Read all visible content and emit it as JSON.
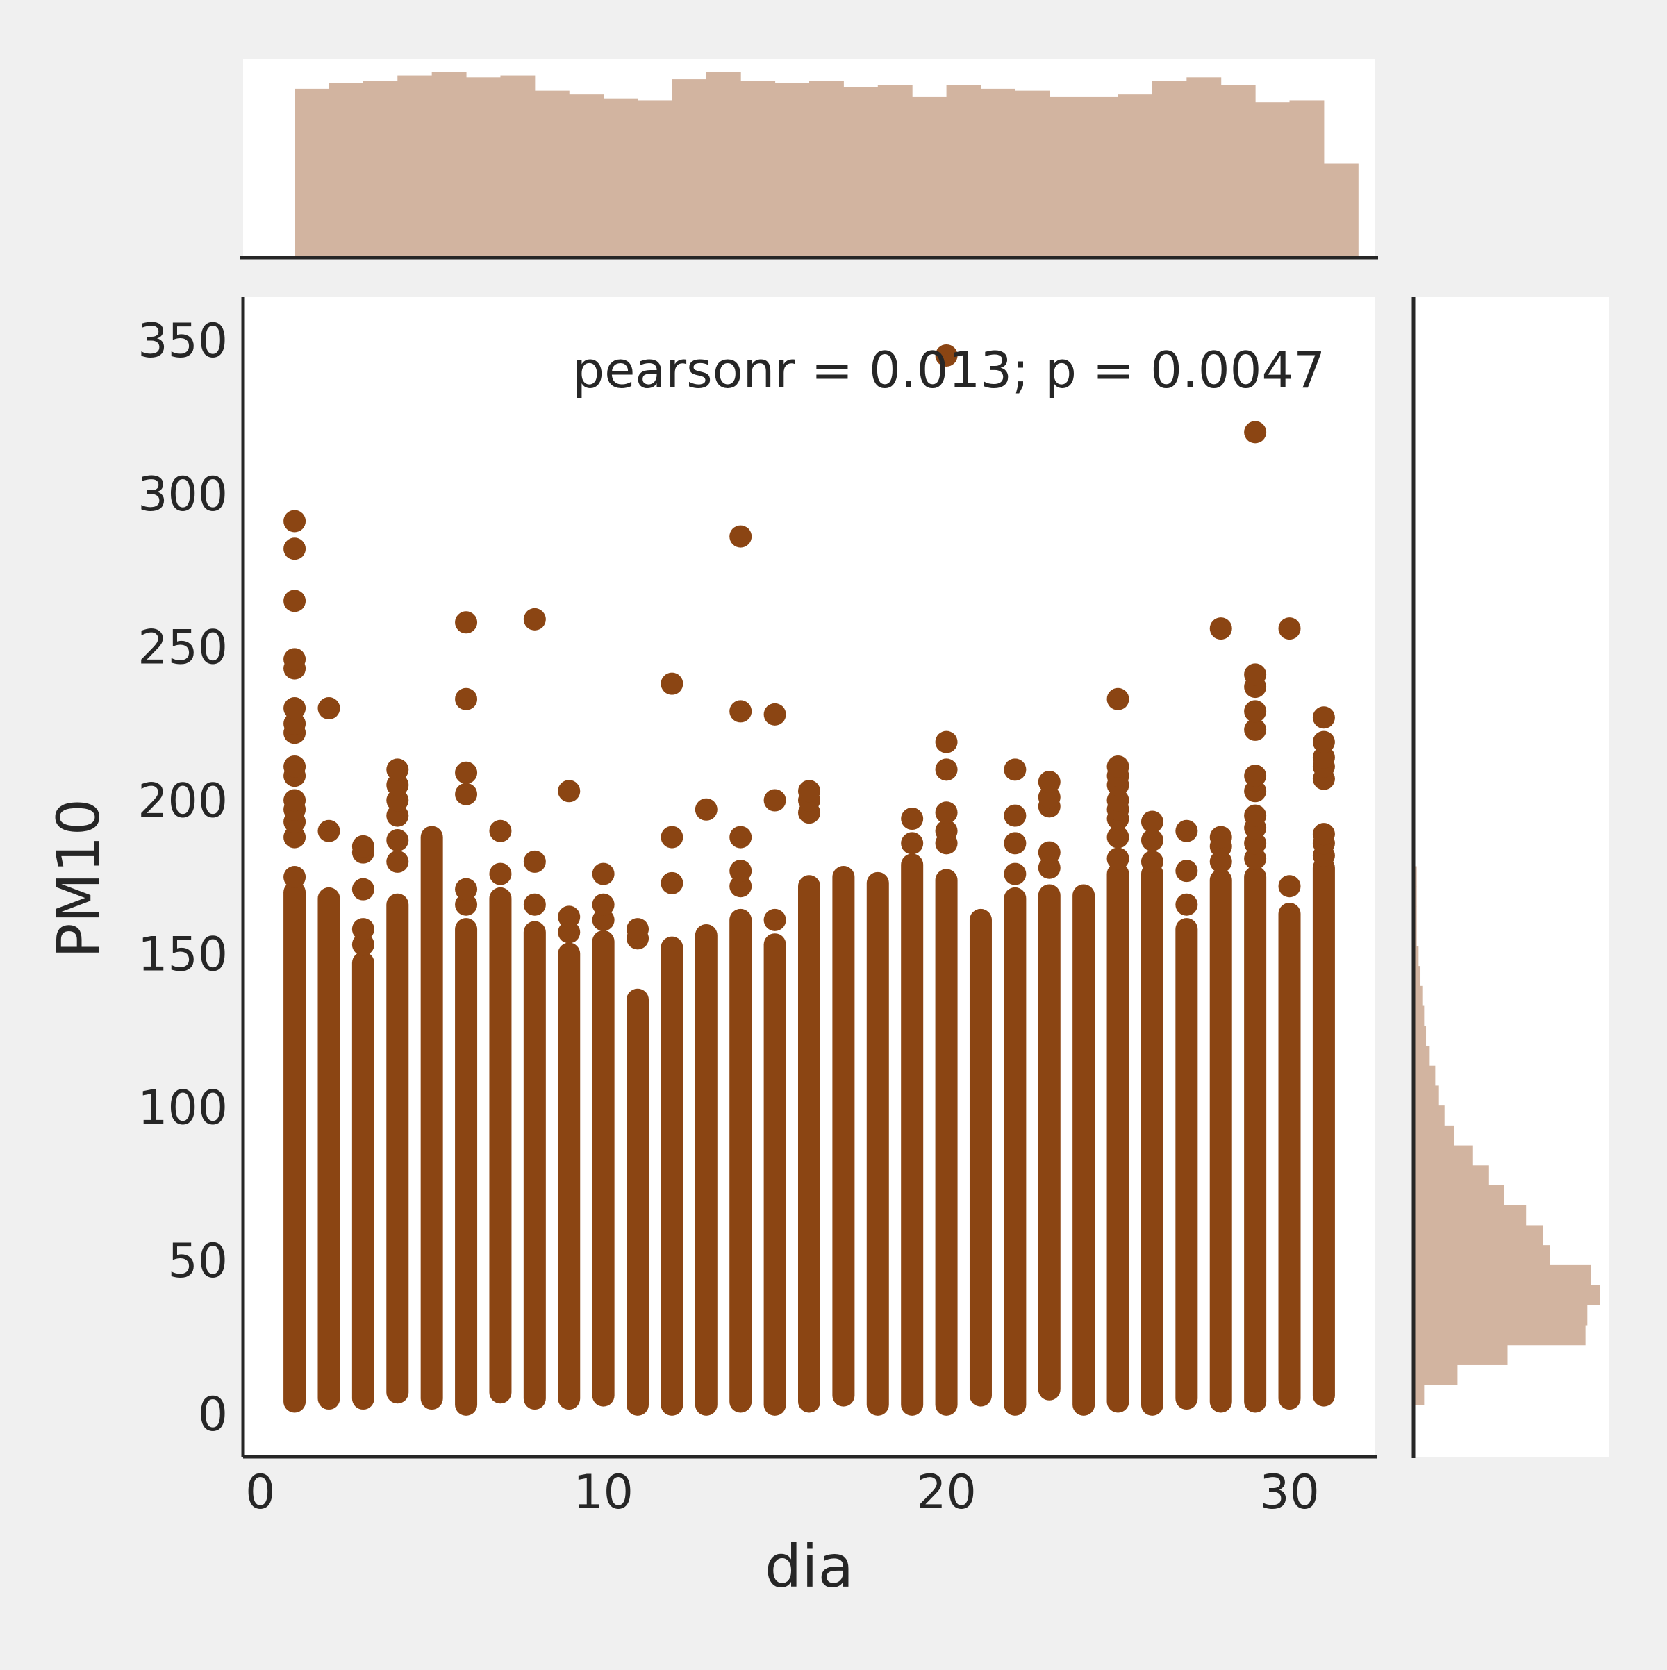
{
  "chart_data": {
    "type": "scatter",
    "title": "",
    "xlabel": "dia",
    "ylabel": "PM10",
    "xlim": [
      -0.5,
      32.5
    ],
    "ylim": [
      -14,
      364
    ],
    "xticks": [
      0,
      10,
      20,
      30
    ],
    "yticks": [
      0,
      50,
      100,
      150,
      200,
      250,
      300,
      350
    ],
    "annotation": "pearsonr = 0.013; p = 0.0047",
    "grid": false,
    "marker_color": "#8b4513",
    "hist_color": "#d2b4a0",
    "background": "#f0f0f0",
    "days": [
      {
        "x": 1,
        "min": 4,
        "max": 170,
        "outliers": [
          175,
          188,
          193,
          197,
          200,
          208,
          211,
          222,
          225,
          230,
          243,
          246,
          265,
          282,
          291
        ]
      },
      {
        "x": 2,
        "min": 5,
        "max": 168,
        "outliers": [
          190,
          230
        ]
      },
      {
        "x": 3,
        "min": 5,
        "max": 147,
        "outliers": [
          153,
          158,
          171,
          183,
          185
        ]
      },
      {
        "x": 4,
        "min": 7,
        "max": 166,
        "outliers": [
          180,
          187,
          195,
          200,
          205,
          210
        ]
      },
      {
        "x": 5,
        "min": 5,
        "max": 188,
        "outliers": []
      },
      {
        "x": 6,
        "min": 3,
        "max": 158,
        "outliers": [
          166,
          171,
          202,
          209,
          233,
          258
        ]
      },
      {
        "x": 7,
        "min": 7,
        "max": 168,
        "outliers": [
          176,
          190
        ]
      },
      {
        "x": 8,
        "min": 5,
        "max": 157,
        "outliers": [
          166,
          180,
          259
        ]
      },
      {
        "x": 9,
        "min": 5,
        "max": 150,
        "outliers": [
          157,
          162,
          203
        ]
      },
      {
        "x": 10,
        "min": 6,
        "max": 154,
        "outliers": [
          161,
          166,
          176
        ]
      },
      {
        "x": 11,
        "min": 3,
        "max": 135,
        "outliers": [
          155,
          158
        ]
      },
      {
        "x": 12,
        "min": 3,
        "max": 152,
        "outliers": [
          173,
          188,
          238
        ]
      },
      {
        "x": 13,
        "min": 3,
        "max": 156,
        "outliers": [
          197
        ]
      },
      {
        "x": 14,
        "min": 4,
        "max": 161,
        "outliers": [
          172,
          177,
          188,
          229,
          286
        ]
      },
      {
        "x": 15,
        "min": 3,
        "max": 153,
        "outliers": [
          161,
          200,
          228
        ]
      },
      {
        "x": 16,
        "min": 4,
        "max": 172,
        "outliers": [
          196,
          200,
          203
        ]
      },
      {
        "x": 17,
        "min": 6,
        "max": 175,
        "outliers": []
      },
      {
        "x": 18,
        "min": 3,
        "max": 173,
        "outliers": []
      },
      {
        "x": 19,
        "min": 3,
        "max": 179,
        "outliers": [
          186,
          194
        ]
      },
      {
        "x": 20,
        "min": 3,
        "max": 174,
        "outliers": [
          186,
          190,
          196,
          210,
          219,
          345
        ]
      },
      {
        "x": 21,
        "min": 6,
        "max": 161,
        "outliers": []
      },
      {
        "x": 22,
        "min": 3,
        "max": 168,
        "outliers": [
          176,
          186,
          195,
          210
        ]
      },
      {
        "x": 23,
        "min": 8,
        "max": 169,
        "outliers": [
          178,
          183,
          198,
          201,
          206
        ]
      },
      {
        "x": 24,
        "min": 3,
        "max": 169,
        "outliers": []
      },
      {
        "x": 25,
        "min": 4,
        "max": 176,
        "outliers": [
          181,
          188,
          194,
          197,
          200,
          205,
          208,
          211,
          233
        ]
      },
      {
        "x": 26,
        "min": 3,
        "max": 176,
        "outliers": [
          180,
          187,
          193
        ]
      },
      {
        "x": 27,
        "min": 5,
        "max": 158,
        "outliers": [
          166,
          177,
          190
        ]
      },
      {
        "x": 28,
        "min": 4,
        "max": 174,
        "outliers": [
          180,
          185,
          188,
          256
        ]
      },
      {
        "x": 29,
        "min": 4,
        "max": 175,
        "outliers": [
          181,
          186,
          191,
          195,
          203,
          208,
          223,
          229,
          237,
          241,
          320
        ]
      },
      {
        "x": 30,
        "min": 5,
        "max": 163,
        "outliers": [
          172,
          256
        ]
      },
      {
        "x": 31,
        "min": 6,
        "max": 178,
        "outliers": [
          182,
          186,
          189,
          207,
          211,
          214,
          219,
          227
        ]
      }
    ],
    "x_histogram": {
      "bin_edges": [
        1,
        2,
        3,
        4,
        5,
        6,
        7,
        8,
        9,
        10,
        11,
        12,
        13,
        14,
        15,
        16,
        17,
        18,
        19,
        20,
        21,
        22,
        23,
        24,
        25,
        26,
        27,
        28,
        29,
        30,
        31
      ],
      "heights": [
        0.87,
        0.9,
        0.91,
        0.94,
        0.96,
        0.93,
        0.94,
        0.86,
        0.84,
        0.82,
        0.81,
        0.92,
        0.96,
        0.91,
        0.9,
        0.91,
        0.88,
        0.89,
        0.83,
        0.89,
        0.87,
        0.86,
        0.83,
        0.83,
        0.84,
        0.91,
        0.93,
        0.89,
        0.8,
        0.81,
        0.48
      ]
    },
    "y_histogram": {
      "bin_width": 6.5,
      "y_start": 3,
      "heights": [
        0.05,
        0.23,
        0.5,
        0.92,
        0.93,
        1.0,
        0.95,
        0.73,
        0.69,
        0.6,
        0.48,
        0.4,
        0.31,
        0.21,
        0.16,
        0.13,
        0.11,
        0.08,
        0.06,
        0.05,
        0.04,
        0.03,
        0.02,
        0.01,
        0.01,
        0.01,
        0.01
      ]
    }
  }
}
